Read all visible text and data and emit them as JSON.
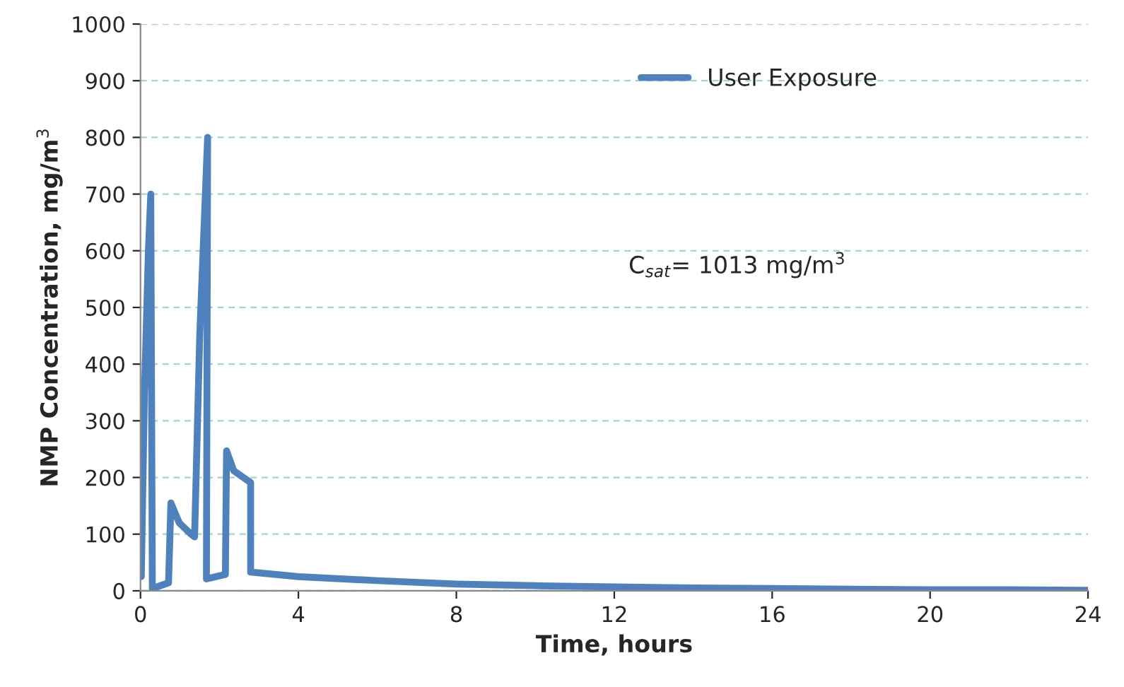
{
  "chart_data": {
    "type": "line",
    "xlabel": "Time, hours",
    "ylabel": "NMP Concentration, mg/m$^{3}$",
    "xlim": [
      0,
      24
    ],
    "xticks": [
      0,
      4,
      8,
      12,
      16,
      20,
      24
    ],
    "ylim": [
      0,
      1000
    ],
    "yticks": [
      0,
      100,
      200,
      300,
      400,
      500,
      600,
      700,
      800,
      900,
      1000
    ],
    "grid": "y",
    "legend": "top right",
    "marker": "none",
    "line_style": "solid",
    "annotations": [
      "C$_{sat}$= 1013 mg/m$^{3}$"
    ],
    "series": [
      {
        "name": "User Exposure",
        "color": "#4f81bd",
        "x": [
          0.02,
          0.1,
          0.2,
          0.26,
          0.3,
          0.71,
          0.77,
          0.98,
          1.28,
          1.37,
          1.5,
          1.7,
          1.67,
          2.15,
          2.18,
          2.36,
          2.79,
          2.79,
          4,
          6,
          8,
          10,
          12,
          14,
          16,
          18,
          20,
          22,
          24
        ],
        "values": [
          25,
          350,
          600,
          700,
          4,
          14,
          155,
          120,
          100,
          95,
          450,
          800,
          21,
          29,
          247,
          212,
          191,
          33,
          25,
          18,
          12,
          9,
          7,
          5,
          4,
          3,
          2,
          2,
          1
        ]
      }
    ]
  }
}
